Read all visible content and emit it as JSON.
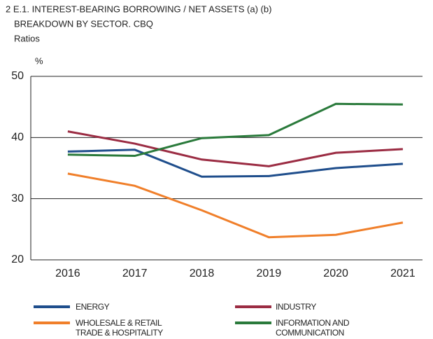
{
  "chart_data": {
    "type": "line",
    "title": "2 E.1. INTEREST-BEARING BORROWING / NET ASSETS (a) (b)",
    "subtitle": "BREAKDOWN BY SECTOR. CBQ",
    "y_label": "Ratios",
    "y_unit": "%",
    "categories": [
      "2016",
      "2017",
      "2018",
      "2019",
      "2020",
      "2021"
    ],
    "series": [
      {
        "name": "ENERGY",
        "color": "#1f4e8c",
        "values": [
          37.7,
          38.0,
          33.6,
          33.7,
          35.0,
          35.7
        ]
      },
      {
        "name": "INDUSTRY",
        "color": "#9b2c43",
        "values": [
          41.0,
          39.0,
          36.4,
          35.3,
          37.5,
          38.1
        ]
      },
      {
        "name": "WHOLESALE & RETAIL TRADE & HOSPITALITY",
        "color": "#f07f2a",
        "values": [
          34.1,
          32.1,
          28.1,
          23.7,
          24.1,
          26.1
        ]
      },
      {
        "name": "INFORMATION AND COMMUNICATION",
        "color": "#2a7a3b",
        "values": [
          37.2,
          37.0,
          39.9,
          40.4,
          45.5,
          45.4
        ]
      }
    ],
    "ylim": [
      20,
      50
    ],
    "yticks": [
      20,
      30,
      40,
      50
    ],
    "grid": true
  }
}
